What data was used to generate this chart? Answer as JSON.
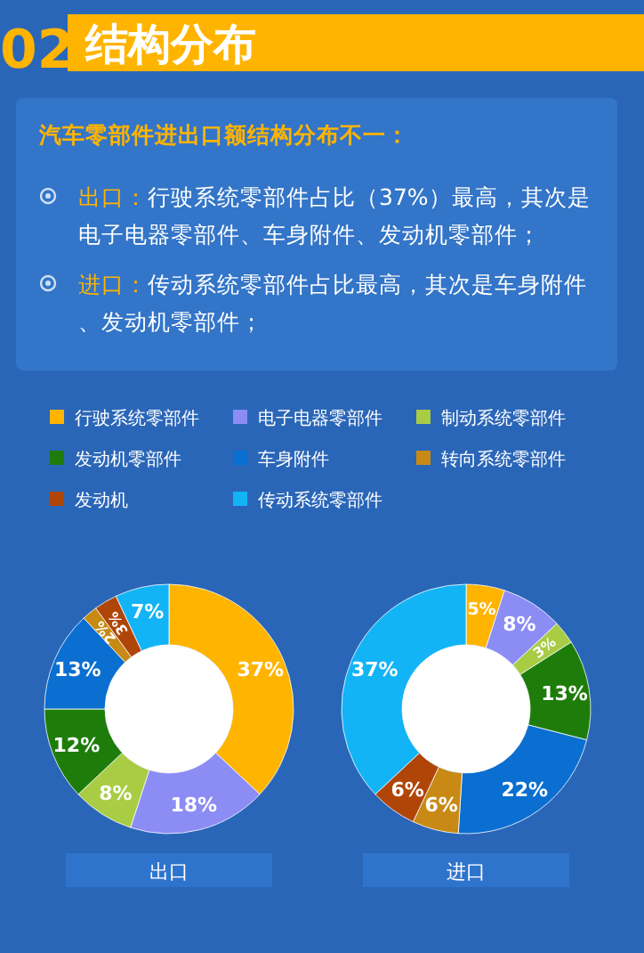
{
  "chart_data": {
    "type": "donut",
    "title": "结构分布",
    "subtitle": "汽车零部件进出口额结构分布不一：",
    "annotations": [
      "02",
      "出口：行驶系统零部件占比（37%）最高，其次是电子电器零部件、车身附件、发动机零部件；",
      "进口：传动系统零部件占比最高，其次是车身附件、发动机零部件；"
    ],
    "legend": "top",
    "categories": [
      "行驶系统零部件",
      "电子电器零部件",
      "制动系统零部件",
      "发动机零部件",
      "车身附件",
      "转向系统零部件",
      "发动机",
      "传动系统零部件"
    ],
    "colors": [
      "#ffb400",
      "#8c8cf5",
      "#a8cc44",
      "#1e7d0a",
      "#0a6fd0",
      "#c88a14",
      "#b04508",
      "#12b4f5"
    ],
    "series": [
      {
        "name": "出口",
        "values": [
          37,
          18,
          8,
          12,
          13,
          2,
          3,
          7
        ],
        "value_labels": [
          "37%",
          "18%",
          "8%",
          "12%",
          "13%",
          "2%",
          "3%",
          "7%"
        ]
      },
      {
        "name": "进口",
        "values": [
          5,
          8,
          3,
          13,
          22,
          6,
          6,
          37
        ],
        "value_labels": [
          "5%",
          "8%",
          "3%",
          "13%",
          "22%",
          "6%",
          "6%",
          "37%"
        ]
      }
    ]
  }
}
